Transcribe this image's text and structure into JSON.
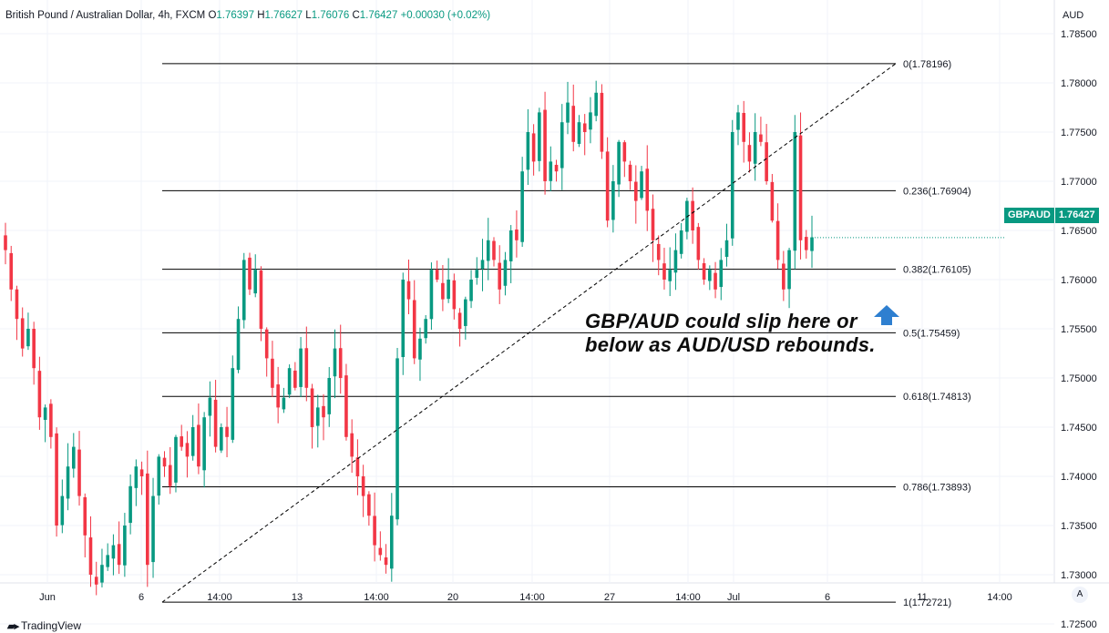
{
  "legend": {
    "symbol": "British Pound / Australian Dollar, 4h, FXCM",
    "o_label": "O",
    "o": "1.76397",
    "h_label": "H",
    "h": "1.76627",
    "l_label": "L",
    "l": "1.76076",
    "c_label": "C",
    "c": "1.76427",
    "change": "+0.00030 (+0.02%)"
  },
  "currency": "AUD",
  "price_tag": {
    "symbol": "GBPAUD",
    "value": "1.76427"
  },
  "annotation": {
    "line1": "GBP/AUD could slip here or",
    "line2": "below as AUD/USD rebounds."
  },
  "brand": "TradingView",
  "auto_label": "A",
  "colors": {
    "up": "#089981",
    "down": "#f23645",
    "grid": "#f0f3fa",
    "fib": "#000000",
    "arrow": "#2e7fd0"
  },
  "chart_data": {
    "type": "candlestick",
    "symbol": "GBPAUD",
    "timeframe": "4h",
    "ylim": [
      1.7225,
      1.7875
    ],
    "yticks": [
      "1.72500",
      "1.73000",
      "1.73500",
      "1.74000",
      "1.74500",
      "1.75000",
      "1.75500",
      "1.76000",
      "1.76500",
      "1.77000",
      "1.77500",
      "1.78000",
      "1.78500"
    ],
    "xticks": [
      "Jun",
      "6",
      "14:00",
      "13",
      "14:00",
      "20",
      "14:00",
      "27",
      "14:00",
      "Jul",
      "6",
      "11",
      "14:00"
    ],
    "fibonacci": [
      {
        "label": "0(1.78196)",
        "value": 1.78196
      },
      {
        "label": "0.236(1.76904)",
        "value": 1.76904
      },
      {
        "label": "0.382(1.76105)",
        "value": 1.76105
      },
      {
        "label": "0.5(1.75459)",
        "value": 1.75459
      },
      {
        "label": "0.618(1.74813)",
        "value": 1.74813
      },
      {
        "label": "0.786(1.73893)",
        "value": 1.73893
      },
      {
        "label": "1(1.72721)",
        "value": 1.72721
      }
    ],
    "trendline": {
      "from": 1.72721,
      "to": 1.78196,
      "style": "dashed"
    },
    "anchors": [
      1.763,
      1.759,
      1.756,
      1.753,
      1.755,
      1.751,
      1.746,
      1.747,
      1.744,
      1.735,
      1.738,
      1.741,
      1.743,
      1.738,
      1.734,
      1.73,
      1.729,
      1.731,
      1.732,
      1.733,
      1.731,
      1.735,
      1.739,
      1.741,
      1.74,
      1.731,
      1.738,
      1.742,
      1.741,
      1.739,
      1.744,
      1.743,
      1.742,
      1.745,
      1.741,
      1.746,
      1.748,
      1.743,
      1.745,
      1.744,
      1.751,
      1.756,
      1.762,
      1.759,
      1.761,
      1.755,
      1.752,
      1.749,
      1.747,
      1.748,
      1.751,
      1.749,
      1.753,
      1.749,
      1.745,
      1.747,
      1.746,
      1.75,
      1.753,
      1.75,
      1.744,
      1.742,
      1.74,
      1.738,
      1.736,
      1.733,
      1.732,
      1.731,
      1.736,
      1.752,
      1.76,
      1.758,
      1.752,
      1.754,
      1.756,
      1.761,
      1.76,
      1.758,
      1.76,
      1.757,
      1.755,
      1.758,
      1.76,
      1.761,
      1.762,
      1.764,
      1.762,
      1.759,
      1.762,
      1.765,
      1.764,
      1.771,
      1.775,
      1.772,
      1.777,
      1.77,
      1.772,
      1.771,
      1.776,
      1.778,
      1.774,
      1.776,
      1.775,
      1.777,
      1.779,
      1.773,
      1.766,
      1.77,
      1.774,
      1.772,
      1.77,
      1.768,
      1.771,
      1.767,
      1.764,
      1.762,
      1.76,
      1.761,
      1.763,
      1.765,
      1.768,
      1.765,
      1.762,
      1.76,
      1.761,
      1.759,
      1.762,
      1.764,
      1.775,
      1.777,
      1.774,
      1.772,
      1.775,
      1.774,
      1.77,
      1.766,
      1.762,
      1.759,
      1.763,
      1.775,
      1.764,
      1.763,
      1.7643
    ]
  }
}
